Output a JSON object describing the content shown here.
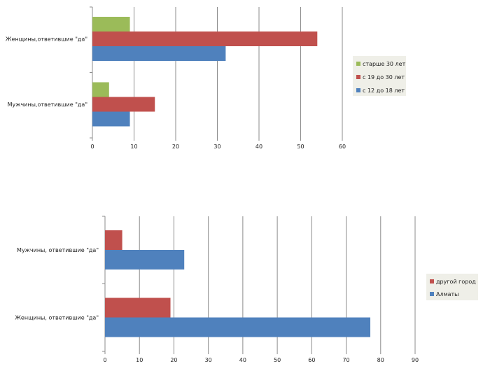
{
  "colors": {
    "green": "#9bbb59",
    "red": "#c0504d",
    "blue": "#4f81bd",
    "grid": "#8c8c8c",
    "legend_bg": "#efefe8"
  },
  "chart_data": [
    {
      "type": "bar",
      "orientation": "horizontal",
      "categories": [
        "Женщины,ответившие \"да\"",
        "Мужчины,ответившие \"да\""
      ],
      "series": [
        {
          "name": "старше 30 лет",
          "values": [
            9,
            4
          ],
          "color": "#9bbb59"
        },
        {
          "name": "с 19 до 30 лет",
          "values": [
            54,
            15
          ],
          "color": "#c0504d"
        },
        {
          "name": "с 12 до 18 лет",
          "values": [
            32,
            9
          ],
          "color": "#4f81bd"
        }
      ],
      "xlim": [
        0,
        60
      ],
      "xticks": [
        0,
        10,
        20,
        30,
        40,
        50,
        60
      ],
      "grid": true,
      "legend": "right"
    },
    {
      "type": "bar",
      "orientation": "horizontal",
      "categories": [
        "Мужчины, ответившие \"да\"",
        "Женщины, ответившие \"да\""
      ],
      "series": [
        {
          "name": "другой город",
          "values": [
            5,
            19
          ],
          "color": "#c0504d"
        },
        {
          "name": "Алматы",
          "values": [
            23,
            77
          ],
          "color": "#4f81bd"
        }
      ],
      "xlim": [
        0,
        90
      ],
      "xticks": [
        0,
        10,
        20,
        30,
        40,
        50,
        60,
        70,
        80,
        90
      ],
      "grid": true,
      "legend": "right"
    }
  ]
}
